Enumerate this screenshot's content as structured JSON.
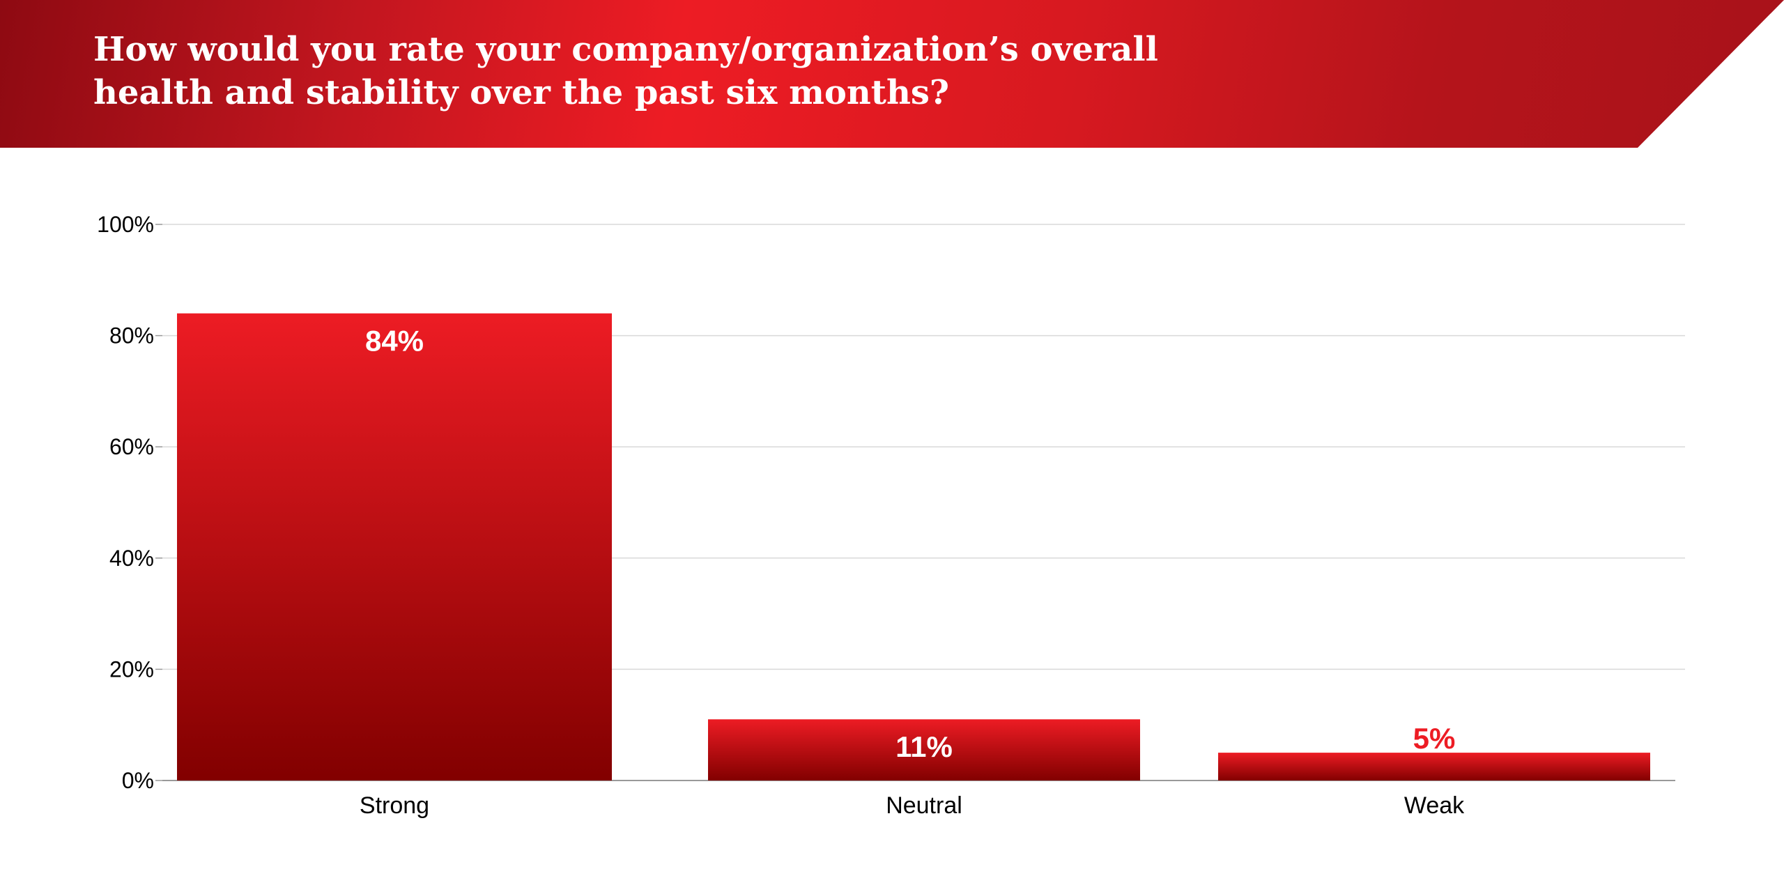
{
  "title": "How would you rate your company/organization’s overall health and stability over the past six months?",
  "colors": {
    "bar_top": "#ed1c24",
    "bar_bottom": "#820000",
    "header_red": "#ed1c24",
    "gridline": "#d9d9d9",
    "axis_line": "#999999",
    "text": "#000000",
    "label_inside": "#ffffff",
    "label_outside": "#ed1c24"
  },
  "chart_data": {
    "type": "bar",
    "categories": [
      "Strong",
      "Neutral",
      "Weak"
    ],
    "values": [
      84,
      11,
      5
    ],
    "data_labels": [
      "84%",
      "11%",
      "5%"
    ],
    "ylim": [
      0,
      100
    ],
    "yticks": [
      0,
      20,
      40,
      60,
      80,
      100
    ],
    "ytick_labels": [
      "0%",
      "20%",
      "40%",
      "60%",
      "80%",
      "100%"
    ],
    "xlabel": "",
    "ylabel": "",
    "grid": true,
    "legend": "none"
  }
}
